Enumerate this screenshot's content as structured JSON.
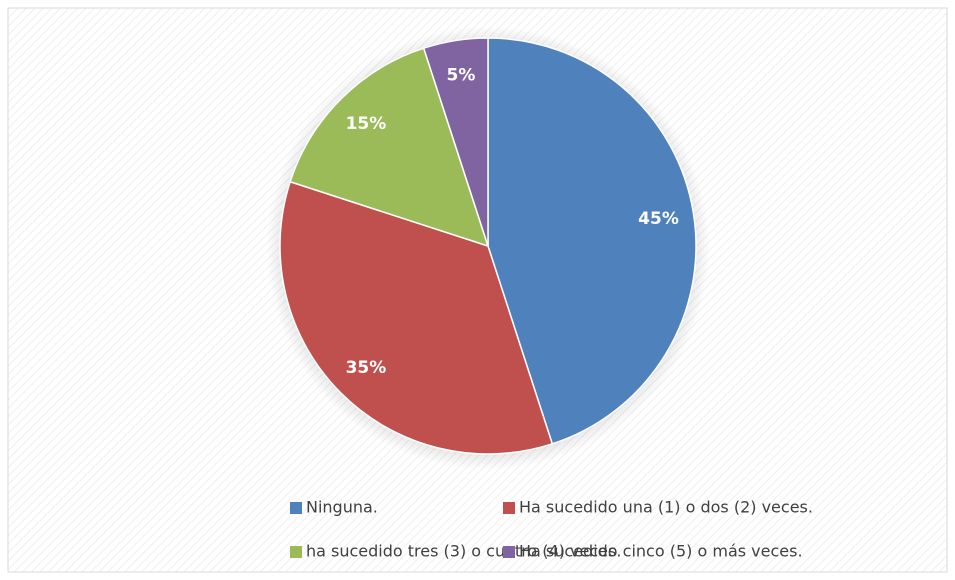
{
  "chart_data": {
    "type": "pie",
    "categories": [
      "Ninguna.",
      "Ha sucedido una (1) o dos (2) veces.",
      "ha sucedido tres (3) o cuatro (4) veces.",
      "Ha sucedido cinco (5) o más veces."
    ],
    "values": [
      45,
      35,
      15,
      5
    ],
    "value_labels": [
      "45%",
      "35%",
      "15%",
      "5%"
    ],
    "colors": [
      "#4f81bd",
      "#c0504d",
      "#9bbb59",
      "#8064a2"
    ],
    "legend": "bottom"
  }
}
